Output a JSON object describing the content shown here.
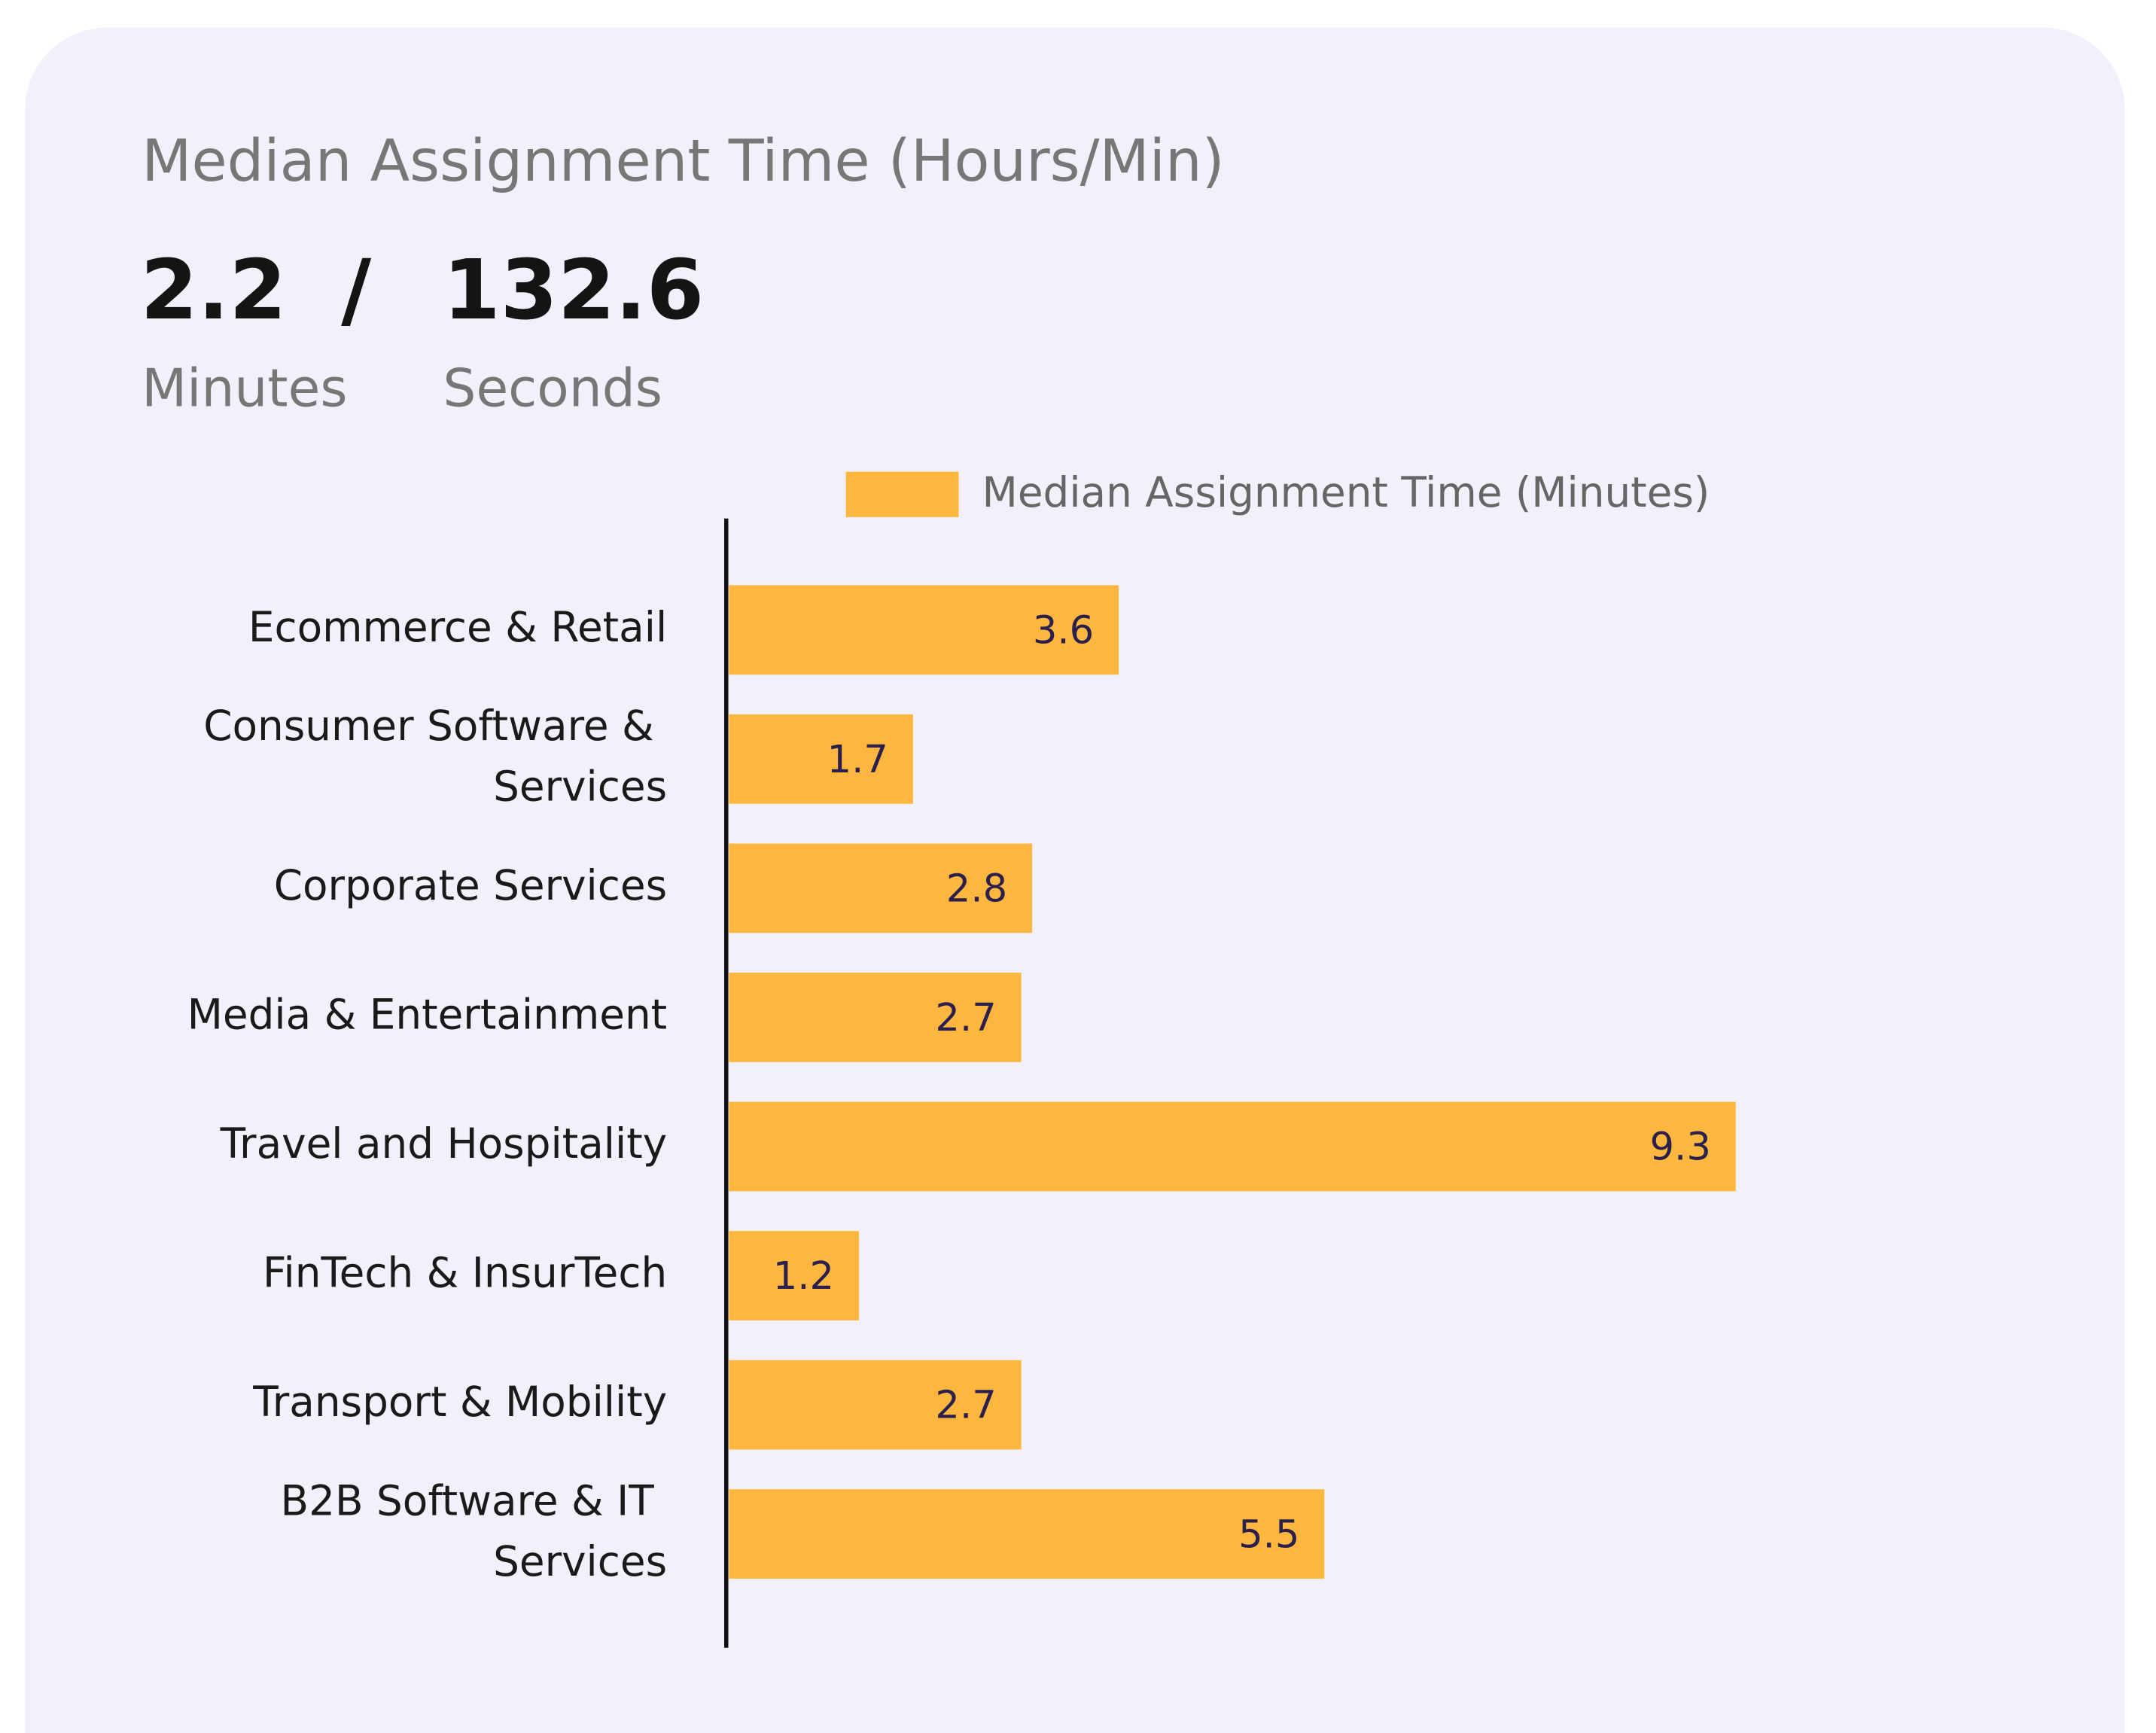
{
  "chart_data": {
    "type": "bar",
    "orientation": "horizontal",
    "title": "Median Assignment Time (Hours/Min)",
    "stats": [
      {
        "value": "2.2",
        "unit": "Minutes"
      },
      {
        "value": "132.6",
        "unit": "Seconds"
      }
    ],
    "separator": "/",
    "categories": [
      "Ecommerce & Retail",
      "Consumer Software & Services",
      "Corporate Services",
      "Media & Entertainment",
      "Travel and Hospitality",
      "FinTech & InsurTech",
      "Transport & Mobility",
      "B2B Software & IT Services"
    ],
    "series": [
      {
        "name": "Median Assignment Time (Minutes)",
        "color": "#fdb73e",
        "values": [
          3.6,
          1.7,
          2.8,
          2.7,
          9.3,
          1.2,
          2.7,
          5.5
        ]
      }
    ],
    "xlim": [
      0,
      9.3
    ],
    "legend": "top"
  }
}
